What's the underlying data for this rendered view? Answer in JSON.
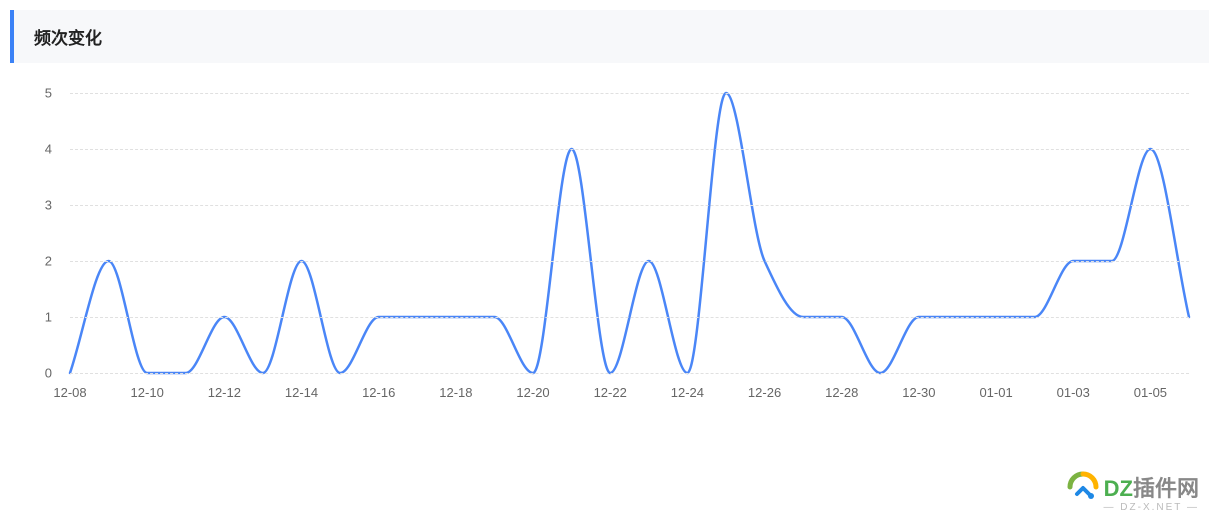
{
  "header": {
    "title": "频次变化",
    "accent_color": "#3b82f6",
    "bg_color": "#f7f8fa",
    "text_color": "#222222"
  },
  "chart": {
    "type": "line",
    "line_color": "#4a86f7",
    "line_width": 2.5,
    "background_color": "#ffffff",
    "grid_color": "#e0e0e0",
    "grid_style": "dashed",
    "axis_text_color": "#666666",
    "axis_fontsize": 13,
    "ylim": [
      0,
      5
    ],
    "ytick_step": 1,
    "yticks": [
      0,
      1,
      2,
      3,
      4,
      5
    ],
    "xlabels": [
      "12-08",
      "12-10",
      "12-12",
      "12-14",
      "12-16",
      "12-18",
      "12-20",
      "12-22",
      "12-24",
      "12-26",
      "12-28",
      "12-30",
      "01-01",
      "01-03",
      "01-05"
    ],
    "x_dates": [
      "12-08",
      "12-09",
      "12-10",
      "12-11",
      "12-12",
      "12-13",
      "12-14",
      "12-15",
      "12-16",
      "12-17",
      "12-18",
      "12-19",
      "12-20",
      "12-21",
      "12-22",
      "12-23",
      "12-24",
      "12-25",
      "12-26",
      "12-27",
      "12-28",
      "12-29",
      "12-30",
      "12-31",
      "01-01",
      "01-02",
      "01-03",
      "01-04",
      "01-05",
      "01-06"
    ],
    "values": [
      0,
      2,
      0,
      0,
      1,
      0,
      2,
      0,
      1,
      1,
      1,
      1,
      0,
      4,
      0,
      2,
      0,
      5,
      2,
      1,
      1,
      0,
      1,
      1,
      1,
      1,
      2,
      2,
      4,
      1
    ],
    "smoothing": "monotone-cubic"
  },
  "watermark": {
    "brand_prefix": "DZ",
    "brand_suffix": "插件网",
    "subtitle": "— DZ-X.NET —",
    "prefix_color": "#4caf50",
    "suffix_color": "#888888",
    "sub_color": "#bbbbbb",
    "logo_green": "#7cb342",
    "logo_orange": "#ffb300",
    "logo_blue": "#1e88e5"
  }
}
